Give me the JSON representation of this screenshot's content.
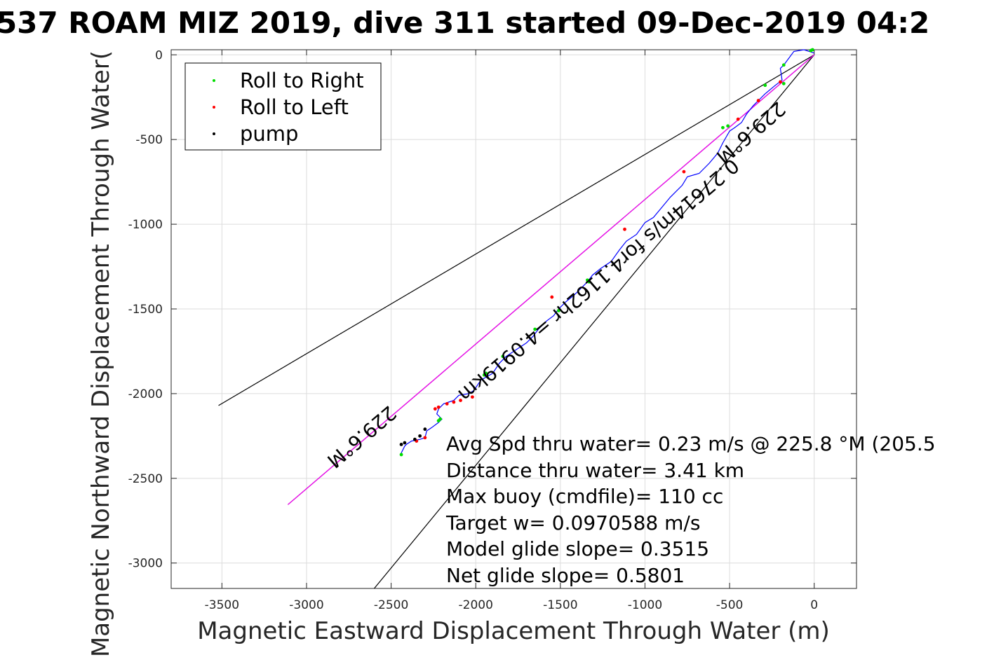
{
  "chart_data": {
    "type": "line",
    "title": "537 ROAM MIZ 2019, dive 311 started 09-Dec-2019 04:2",
    "xlabel": "Magnetic Eastward Displacement Through Water (m)",
    "ylabel": "Magnetic Northward Displacement Through Water(",
    "xlim": [
      -3800,
      250
    ],
    "ylim": [
      -3150,
      30
    ],
    "xticks": [
      -3500,
      -3000,
      -2500,
      -2000,
      -1500,
      -1000,
      -500,
      0
    ],
    "yticks": [
      0,
      -500,
      -1000,
      -1500,
      -2000,
      -2500,
      -3000
    ],
    "grid": true,
    "legend": {
      "location": "top-left",
      "entries": [
        {
          "label": "Roll to Right",
          "color": "#00dd00"
        },
        {
          "label": "Roll to Left",
          "color": "#ff0000"
        },
        {
          "label": "pump",
          "color": "#000000"
        }
      ]
    },
    "track": {
      "name": "glider track",
      "color": "#0000ff",
      "x": [
        0,
        -30,
        -60,
        -120,
        -180,
        -200,
        -190,
        -230,
        -290,
        -330,
        -360,
        -400,
        -430,
        -470,
        -500,
        -540,
        -570,
        -620,
        -680,
        -750,
        -780,
        -850,
        -900,
        -950,
        -1000,
        -1050,
        -1110,
        -1150,
        -1200,
        -1260,
        -1310,
        -1340,
        -1380,
        -1420,
        -1470,
        -1510,
        -1540,
        -1580,
        -1630,
        -1660,
        -1700,
        -1760,
        -1820,
        -1860,
        -1900,
        -1970,
        -2010,
        -2040,
        -2100,
        -2130,
        -2160,
        -2190,
        -2220,
        -2230,
        -2200,
        -2220,
        -2260,
        -2290,
        -2300,
        -2330,
        -2380,
        -2410,
        -2420,
        -2430,
        -2440,
        -2445
      ],
      "y": [
        10,
        20,
        30,
        20,
        -60,
        -80,
        -150,
        -180,
        -230,
        -270,
        -300,
        -350,
        -400,
        -430,
        -450,
        -520,
        -580,
        -640,
        -700,
        -720,
        -770,
        -840,
        -900,
        -960,
        -990,
        -1060,
        -1100,
        -1150,
        -1220,
        -1260,
        -1300,
        -1340,
        -1380,
        -1420,
        -1460,
        -1500,
        -1540,
        -1570,
        -1620,
        -1660,
        -1700,
        -1740,
        -1780,
        -1820,
        -1880,
        -1920,
        -1980,
        -2000,
        -2010,
        -2040,
        -2050,
        -2060,
        -2090,
        -2120,
        -2150,
        -2170,
        -2200,
        -2220,
        -2260,
        -2270,
        -2280,
        -2300,
        -2310,
        -2330,
        -2350,
        -2360
      ]
    },
    "roll_right": {
      "x": [
        -10,
        -20,
        -180,
        -180,
        -290,
        -510,
        -540,
        -1330,
        -1340,
        -1510,
        -1650,
        -1840,
        -1940,
        -1950,
        -2210,
        -2220,
        -2440
      ],
      "y": [
        30,
        25,
        -60,
        -170,
        -180,
        -420,
        -430,
        -1340,
        -1330,
        -1510,
        -1620,
        -1780,
        -1880,
        -1890,
        -2150,
        -2160,
        -2360
      ]
    },
    "roll_left": {
      "x": [
        -200,
        -330,
        -450,
        -770,
        -1120,
        -1550,
        -2020,
        -2090,
        -2130,
        -2170,
        -2220,
        -2240,
        -2300,
        -2350
      ],
      "y": [
        -160,
        -270,
        -380,
        -690,
        -1030,
        -1430,
        -2020,
        -2040,
        -2050,
        -2060,
        -2080,
        -2090,
        -2260,
        -2280
      ]
    },
    "pump": {
      "x": [
        -2300,
        -2330,
        -2360,
        -2420,
        -2440
      ],
      "y": [
        -2210,
        -2250,
        -2270,
        -2290,
        -2300
      ]
    },
    "heading_lines": [
      {
        "x": [
          0,
          -3520
        ],
        "y": [
          0,
          -2070
        ],
        "color": "#000000"
      },
      {
        "x": [
          0,
          -2600
        ],
        "y": [
          0,
          -3150
        ],
        "color": "#000000"
      },
      {
        "x": [
          0,
          -3110
        ],
        "y": [
          0,
          -2655
        ],
        "color": "#000000"
      },
      {
        "x": [
          0,
          -3110
        ],
        "y": [
          0,
          -2655
        ],
        "color": "#ff00ff"
      }
    ],
    "rotated_labels": [
      {
        "text": "229.6°M",
        "x": -2700,
        "y": -2225
      },
      {
        "text": "229.6°M",
        "x": -400,
        "y": -430
      },
      {
        "text": "0.27614m/s for4.1162hr =4.0919km",
        "x": -1300,
        "y": -1300
      }
    ],
    "annotations": [
      "Avg Spd thru water=  0.23 m/s @ 225.8 °M (205.5",
      "Distance thru water=  3.41 km",
      "Max buoy (cmdfile)= 110 cc",
      "Target w= 0.0970588 m/s",
      "Model glide slope= 0.3515",
      "Net glide slope= 0.5801"
    ]
  }
}
